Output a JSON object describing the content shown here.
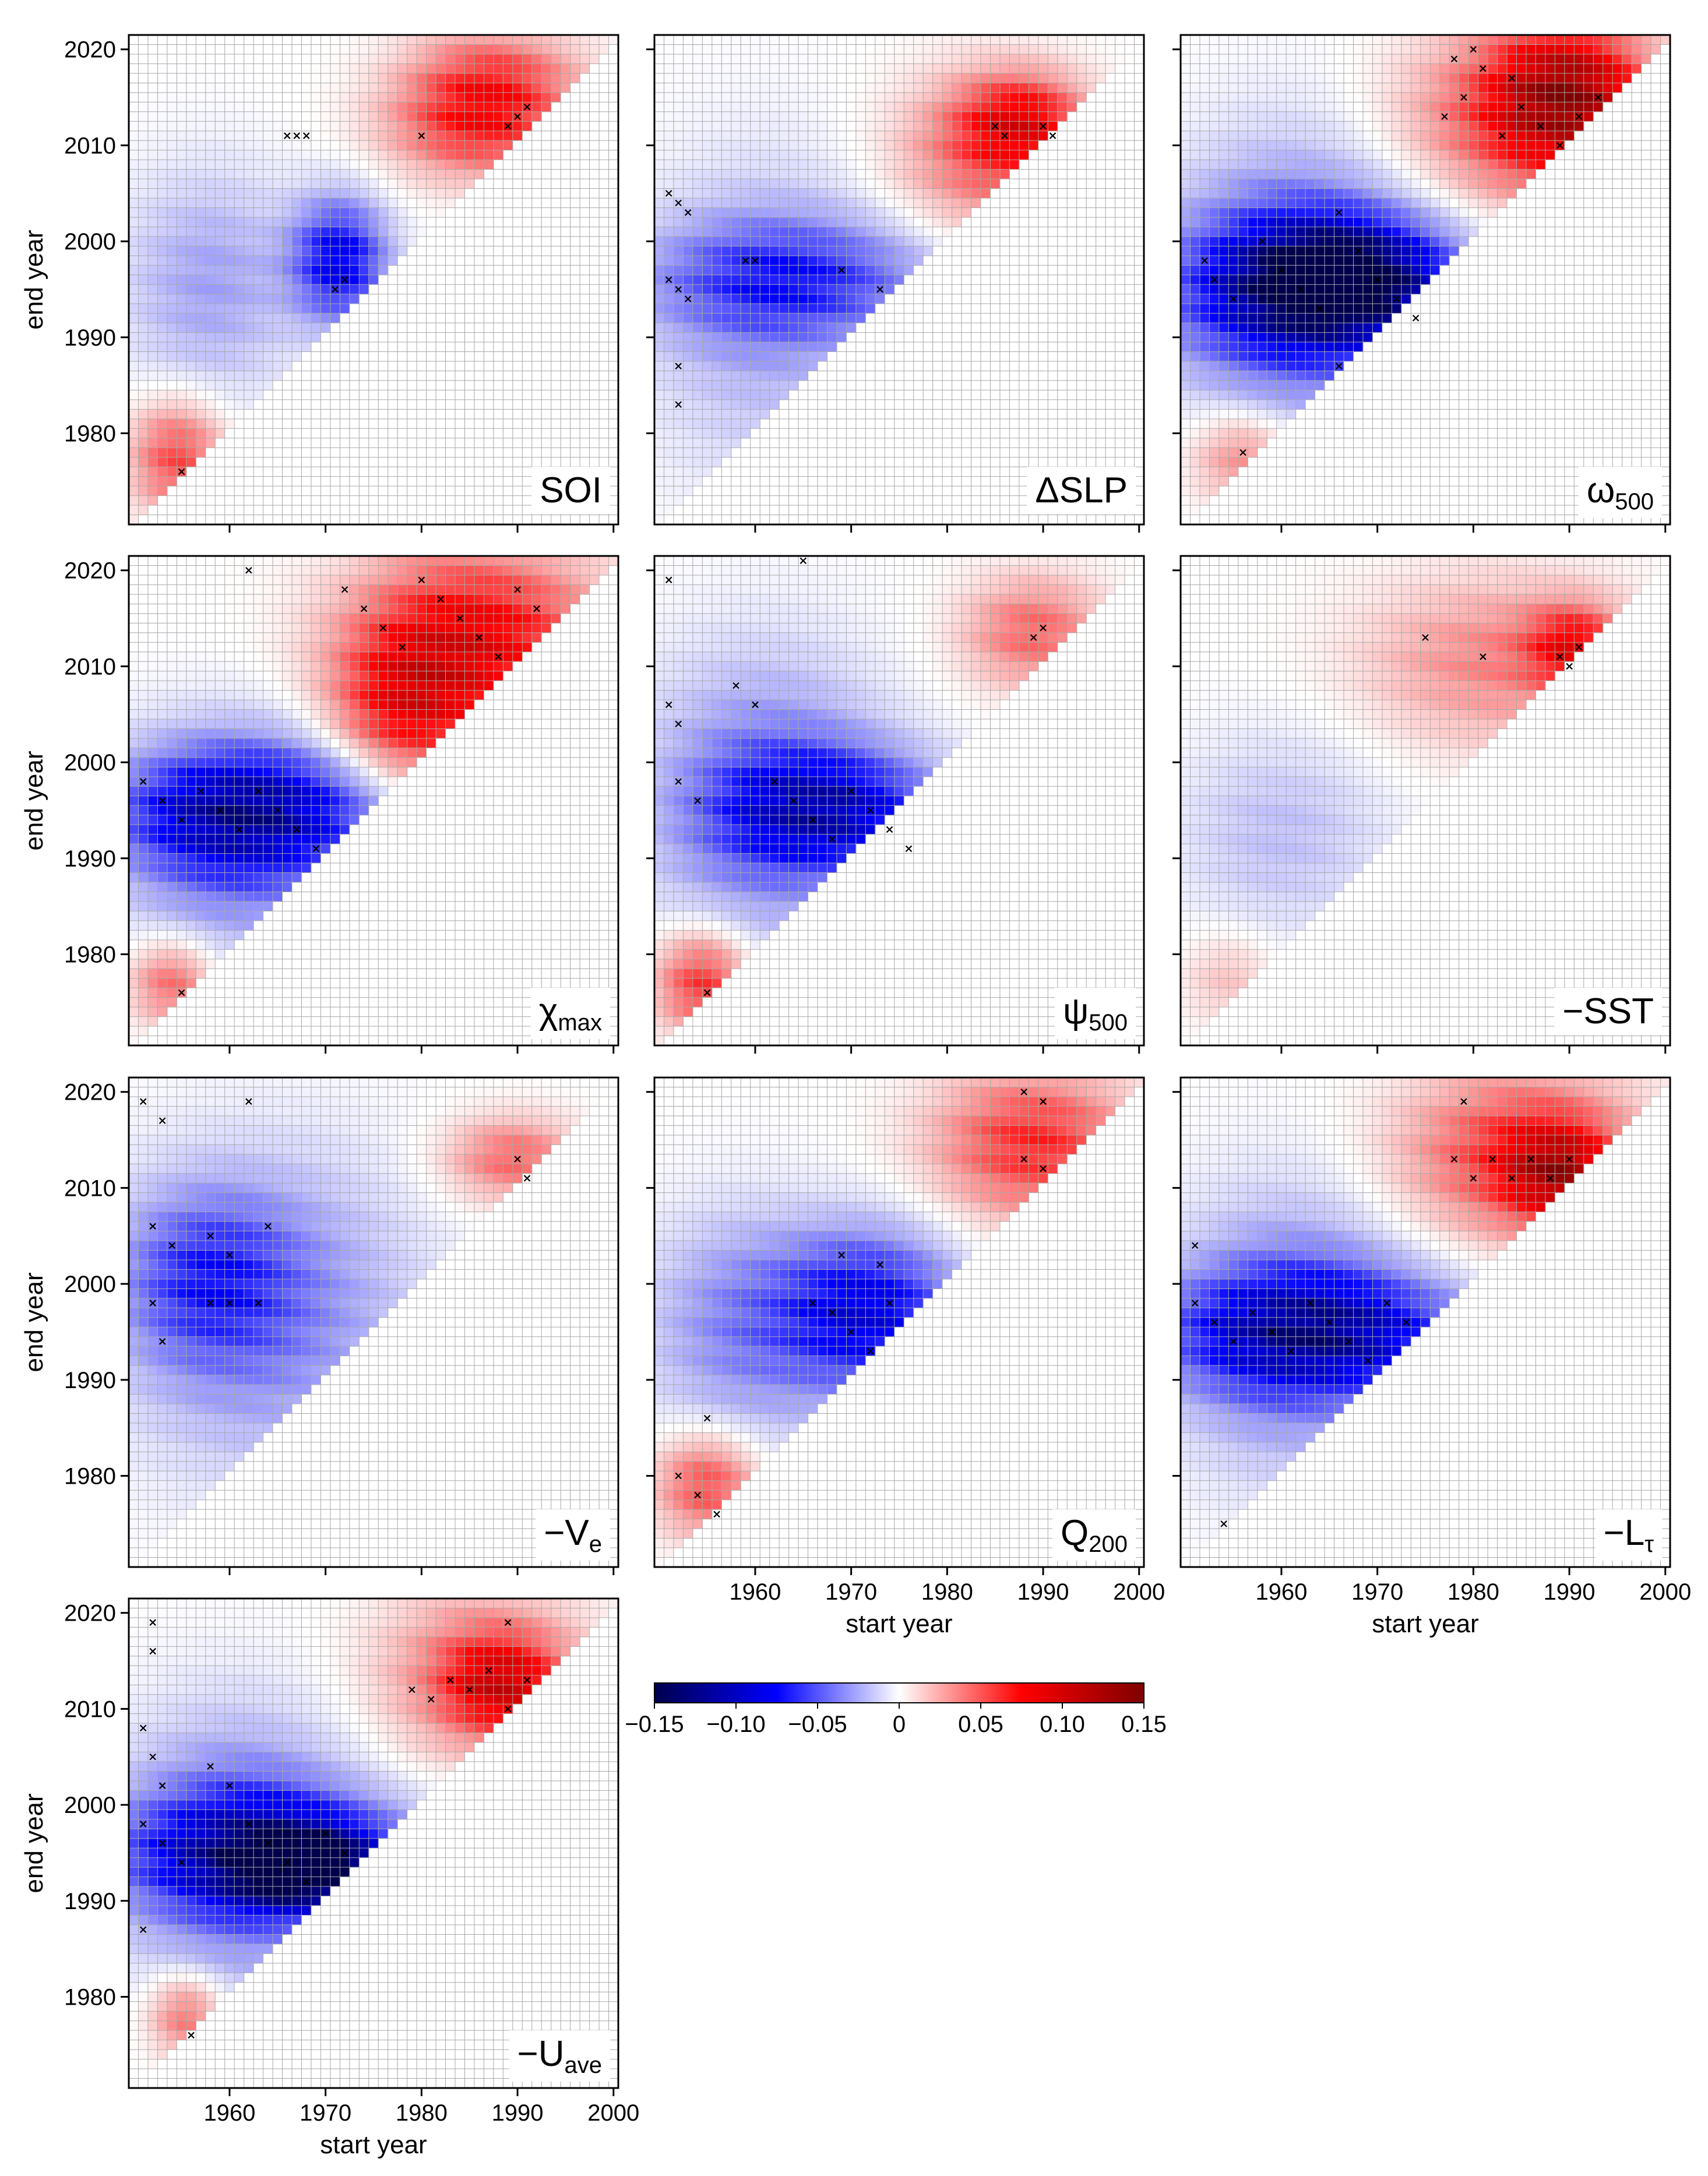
{
  "chart_data": {
    "type": "heatmap",
    "x_range": [
      1950,
      2000
    ],
    "y_range": [
      1971,
      2021
    ],
    "cell_years": 1,
    "x_ticks": [
      1960,
      1970,
      1980,
      1990,
      2000
    ],
    "y_ticks": [
      1980,
      1990,
      2000,
      2010,
      2020
    ],
    "xlabel": "start year",
    "ylabel": "end year",
    "grid": true,
    "colorbar": {
      "min": -0.15,
      "max": 0.15,
      "ticks": [
        -0.15,
        -0.1,
        -0.05,
        0,
        0.05,
        0.1,
        0.15
      ],
      "tick_labels": [
        "−0.15",
        "−0.10",
        "−0.05",
        "0",
        "0.05",
        "0.10",
        "0.15"
      ],
      "colormap": "seismic",
      "stops": [
        "#00004c",
        "#0000ff",
        "#ffffff",
        "#ff0000",
        "#7f0000"
      ]
    },
    "panels": [
      {
        "id": "soi",
        "label_main": "SOI",
        "label_sub": "",
        "features": [
          {
            "x0": 1968,
            "x1": 1975,
            "y0": 1993,
            "y1": 2003,
            "v": -0.09
          },
          {
            "x0": 1978,
            "x1": 1994,
            "y0": 2008,
            "y1": 2016,
            "v": 0.07
          },
          {
            "x0": 1951,
            "x1": 1958,
            "y0": 1973,
            "y1": 1982,
            "v": 0.06
          },
          {
            "x0": 1950,
            "x1": 1966,
            "y0": 1985,
            "y1": 2006,
            "v": -0.03
          },
          {
            "x0": 1980,
            "x1": 1995,
            "y0": 2014,
            "y1": 2021,
            "v": 0.05
          }
        ],
        "sig": [
          [
            1966,
            2011
          ],
          [
            1967,
            2011
          ],
          [
            1968,
            2011
          ],
          [
            1980,
            2011
          ],
          [
            1989,
            2012
          ],
          [
            1990,
            2013
          ],
          [
            1991,
            2014
          ],
          [
            1972,
            1996
          ],
          [
            1971,
            1995
          ],
          [
            1955,
            1976
          ]
        ]
      },
      {
        "id": "dslp",
        "label_main": "ΔSLP",
        "label_sub": "",
        "features": [
          {
            "x0": 1950,
            "x1": 1978,
            "y0": 1991,
            "y1": 2001,
            "v": -0.06
          },
          {
            "x0": 1950,
            "x1": 1972,
            "y0": 1976,
            "y1": 2008,
            "v": -0.025
          },
          {
            "x0": 1976,
            "x1": 1992,
            "y0": 2002,
            "y1": 2016,
            "v": 0.05
          },
          {
            "x0": 1983,
            "x1": 1993,
            "y0": 2009,
            "y1": 2016,
            "v": 0.07
          }
        ],
        "sig": [
          [
            1951,
            2005
          ],
          [
            1952,
            2004
          ],
          [
            1953,
            2003
          ],
          [
            1951,
            1996
          ],
          [
            1952,
            1995
          ],
          [
            1953,
            1994
          ],
          [
            1959,
            1998
          ],
          [
            1960,
            1998
          ],
          [
            1969,
            1997
          ],
          [
            1973,
            1995
          ],
          [
            1985,
            2012
          ],
          [
            1986,
            2011
          ],
          [
            1990,
            2012
          ],
          [
            1991,
            2011
          ],
          [
            1952,
            1987
          ],
          [
            1952,
            1983
          ]
        ]
      },
      {
        "id": "w500",
        "label_main": "ω",
        "label_sub": "500",
        "features": [
          {
            "x0": 1950,
            "x1": 1978,
            "y0": 1988,
            "y1": 2002,
            "v": -0.09
          },
          {
            "x0": 1958,
            "x1": 1974,
            "y0": 1992,
            "y1": 2000,
            "v": -0.12
          },
          {
            "x0": 1950,
            "x1": 1972,
            "y0": 1982,
            "y1": 2010,
            "v": -0.04
          },
          {
            "x0": 1975,
            "x1": 1997,
            "y0": 2005,
            "y1": 2021,
            "v": 0.07
          },
          {
            "x0": 1984,
            "x1": 1996,
            "y0": 2010,
            "y1": 2021,
            "v": 0.1
          },
          {
            "x0": 1952,
            "x1": 1960,
            "y0": 1974,
            "y1": 1981,
            "v": 0.04
          }
        ],
        "sig": [
          [
            1952,
            1998
          ],
          [
            1953,
            1996
          ],
          [
            1955,
            1994
          ],
          [
            1958,
            2000
          ],
          [
            1960,
            1997
          ],
          [
            1962,
            1995
          ],
          [
            1964,
            1993
          ],
          [
            1966,
            2003
          ],
          [
            1968,
            1999
          ],
          [
            1970,
            1996
          ],
          [
            1972,
            1994
          ],
          [
            1974,
            1992
          ],
          [
            1977,
            2013
          ],
          [
            1979,
            2015
          ],
          [
            1981,
            2018
          ],
          [
            1983,
            2011
          ],
          [
            1985,
            2014
          ],
          [
            1987,
            2012
          ],
          [
            1989,
            2010
          ],
          [
            1991,
            2013
          ],
          [
            1993,
            2015
          ],
          [
            1978,
            2019
          ],
          [
            1980,
            2020
          ],
          [
            1984,
            2017
          ],
          [
            1956,
            1978
          ],
          [
            1966,
            1987
          ]
        ]
      },
      {
        "id": "chimax",
        "label_main": "χ",
        "label_sub": "max",
        "features": [
          {
            "x0": 1950,
            "x1": 1974,
            "y0": 1990,
            "y1": 2000,
            "v": -0.09
          },
          {
            "x0": 1950,
            "x1": 1972,
            "y0": 1982,
            "y1": 2002,
            "v": -0.05
          },
          {
            "x0": 1974,
            "x1": 1997,
            "y0": 2005,
            "y1": 2021,
            "v": 0.09
          },
          {
            "x0": 1972,
            "x1": 1985,
            "y0": 1999,
            "y1": 2012,
            "v": 0.07
          },
          {
            "x0": 1951,
            "x1": 1957,
            "y0": 1974,
            "y1": 1980,
            "v": 0.05
          }
        ],
        "sig": [
          [
            1951,
            1998
          ],
          [
            1953,
            1996
          ],
          [
            1955,
            1994
          ],
          [
            1957,
            1997
          ],
          [
            1959,
            1995
          ],
          [
            1961,
            1993
          ],
          [
            1963,
            1997
          ],
          [
            1965,
            1995
          ],
          [
            1967,
            1993
          ],
          [
            1969,
            1991
          ],
          [
            1972,
            2018
          ],
          [
            1974,
            2016
          ],
          [
            1976,
            2014
          ],
          [
            1978,
            2012
          ],
          [
            1980,
            2019
          ],
          [
            1982,
            2017
          ],
          [
            1984,
            2015
          ],
          [
            1986,
            2013
          ],
          [
            1988,
            2011
          ],
          [
            1990,
            2018
          ],
          [
            1992,
            2016
          ],
          [
            1962,
            2020
          ],
          [
            1955,
            1976
          ]
        ]
      },
      {
        "id": "psi500",
        "label_main": "ψ",
        "label_sub": "500",
        "features": [
          {
            "x0": 1958,
            "x1": 1978,
            "y0": 1990,
            "y1": 2000,
            "v": -0.09
          },
          {
            "x0": 1950,
            "x1": 1972,
            "y0": 1982,
            "y1": 2010,
            "v": -0.045
          },
          {
            "x0": 1951,
            "x1": 1958,
            "y0": 1973,
            "y1": 1981,
            "v": 0.07
          },
          {
            "x0": 1983,
            "x1": 1995,
            "y0": 2009,
            "y1": 2018,
            "v": 0.05
          }
        ],
        "sig": [
          [
            1951,
            2006
          ],
          [
            1952,
            2004
          ],
          [
            1958,
            2008
          ],
          [
            1960,
            2006
          ],
          [
            1962,
            1998
          ],
          [
            1964,
            1996
          ],
          [
            1966,
            1994
          ],
          [
            1968,
            1992
          ],
          [
            1970,
            1997
          ],
          [
            1972,
            1995
          ],
          [
            1974,
            1993
          ],
          [
            1976,
            1991
          ],
          [
            1952,
            1998
          ],
          [
            1954,
            1996
          ],
          [
            1989,
            2013
          ],
          [
            1990,
            2014
          ],
          [
            1965,
            2021
          ],
          [
            1951,
            2019
          ],
          [
            1955,
            1976
          ]
        ]
      },
      {
        "id": "msst",
        "label_main": "−SST",
        "label_sub": "",
        "features": [
          {
            "x0": 1970,
            "x1": 1995,
            "y0": 2003,
            "y1": 2018,
            "v": 0.04
          },
          {
            "x0": 1987,
            "x1": 1994,
            "y0": 2009,
            "y1": 2015,
            "v": 0.07
          },
          {
            "x0": 1950,
            "x1": 1970,
            "y0": 1983,
            "y1": 2002,
            "v": -0.02
          },
          {
            "x0": 1951,
            "x1": 1958,
            "y0": 1974,
            "y1": 1981,
            "v": 0.02
          }
        ],
        "sig": [
          [
            1975,
            2013
          ],
          [
            1981,
            2011
          ],
          [
            1989,
            2011
          ],
          [
            1990,
            2010
          ],
          [
            1991,
            2012
          ]
        ]
      },
      {
        "id": "mve",
        "label_main": "−V",
        "label_sub": "e",
        "features": [
          {
            "x0": 1950,
            "x1": 1978,
            "y0": 1982,
            "y1": 2012,
            "v": -0.04
          },
          {
            "x0": 1950,
            "x1": 1965,
            "y0": 1993,
            "y1": 2008,
            "v": -0.05
          },
          {
            "x0": 1984,
            "x1": 1995,
            "y0": 2010,
            "y1": 2016,
            "v": 0.05
          }
        ],
        "sig": [
          [
            1951,
            2019
          ],
          [
            1953,
            2017
          ],
          [
            1952,
            2006
          ],
          [
            1954,
            2004
          ],
          [
            1952,
            1998
          ],
          [
            1958,
            2005
          ],
          [
            1960,
            2003
          ],
          [
            1958,
            1998
          ],
          [
            1960,
            1998
          ],
          [
            1963,
            1998
          ],
          [
            1962,
            2019
          ],
          [
            1964,
            2006
          ],
          [
            1953,
            1994
          ],
          [
            1990,
            2013
          ],
          [
            1991,
            2011
          ]
        ]
      },
      {
        "id": "q200",
        "label_main": "Q",
        "label_sub": "200",
        "features": [
          {
            "x0": 1964,
            "x1": 1980,
            "y0": 1990,
            "y1": 2004,
            "v": -0.09
          },
          {
            "x0": 1950,
            "x1": 1968,
            "y0": 1985,
            "y1": 2006,
            "v": -0.04
          },
          {
            "x0": 1951,
            "x1": 1959,
            "y0": 1975,
            "y1": 1983,
            "v": 0.06
          },
          {
            "x0": 1980,
            "x1": 1998,
            "y0": 2008,
            "y1": 2021,
            "v": 0.07
          }
        ],
        "sig": [
          [
            1966,
            1998
          ],
          [
            1968,
            1997
          ],
          [
            1970,
            1995
          ],
          [
            1972,
            1993
          ],
          [
            1974,
            1998
          ],
          [
            1969,
            2003
          ],
          [
            1973,
            2002
          ],
          [
            1952,
            1980
          ],
          [
            1954,
            1978
          ],
          [
            1956,
            1976
          ],
          [
            1955,
            1986
          ],
          [
            1988,
            2013
          ],
          [
            1990,
            2012
          ],
          [
            1988,
            2020
          ],
          [
            1990,
            2019
          ]
        ]
      },
      {
        "id": "mltau",
        "label_main": "−L",
        "label_sub": "τ",
        "features": [
          {
            "x0": 1950,
            "x1": 1978,
            "y0": 1990,
            "y1": 2000,
            "v": -0.1
          },
          {
            "x0": 1950,
            "x1": 1972,
            "y0": 1982,
            "y1": 2008,
            "v": -0.045
          },
          {
            "x0": 1974,
            "x1": 1996,
            "y0": 2006,
            "y1": 2021,
            "v": 0.07
          },
          {
            "x0": 1985,
            "x1": 1993,
            "y0": 2008,
            "y1": 2015,
            "v": 0.09
          }
        ],
        "sig": [
          [
            1951,
            1998
          ],
          [
            1953,
            1996
          ],
          [
            1955,
            1994
          ],
          [
            1957,
            1997
          ],
          [
            1959,
            1995
          ],
          [
            1961,
            1993
          ],
          [
            1963,
            1998
          ],
          [
            1965,
            1996
          ],
          [
            1967,
            1994
          ],
          [
            1969,
            1992
          ],
          [
            1971,
            1998
          ],
          [
            1973,
            1996
          ],
          [
            1978,
            2013
          ],
          [
            1980,
            2011
          ],
          [
            1982,
            2013
          ],
          [
            1984,
            2011
          ],
          [
            1986,
            2013
          ],
          [
            1988,
            2011
          ],
          [
            1990,
            2013
          ],
          [
            1979,
            2019
          ],
          [
            1954,
            1975
          ],
          [
            1951,
            2004
          ]
        ]
      },
      {
        "id": "muave",
        "label_main": "−U",
        "label_sub": "ave",
        "features": [
          {
            "x0": 1950,
            "x1": 1978,
            "y0": 1990,
            "y1": 2000,
            "v": -0.09
          },
          {
            "x0": 1950,
            "x1": 1972,
            "y0": 1982,
            "y1": 2008,
            "v": -0.05
          },
          {
            "x0": 1962,
            "x1": 1974,
            "y0": 1991,
            "y1": 1996,
            "v": -0.13
          },
          {
            "x0": 1977,
            "x1": 1996,
            "y0": 2006,
            "y1": 2021,
            "v": 0.05
          },
          {
            "x0": 1984,
            "x1": 1993,
            "y0": 2009,
            "y1": 2016,
            "v": 0.07
          },
          {
            "x0": 1953,
            "x1": 1958,
            "y0": 1975,
            "y1": 1981,
            "v": 0.05
          }
        ],
        "sig": [
          [
            1951,
            2008
          ],
          [
            1952,
            2005
          ],
          [
            1953,
            2002
          ],
          [
            1951,
            1998
          ],
          [
            1953,
            1996
          ],
          [
            1955,
            1994
          ],
          [
            1958,
            2004
          ],
          [
            1960,
            2002
          ],
          [
            1962,
            1998
          ],
          [
            1964,
            1996
          ],
          [
            1966,
            1994
          ],
          [
            1968,
            1992
          ],
          [
            1970,
            1997
          ],
          [
            1972,
            1995
          ],
          [
            1979,
            2012
          ],
          [
            1981,
            2011
          ],
          [
            1983,
            2013
          ],
          [
            1985,
            2012
          ],
          [
            1987,
            2014
          ],
          [
            1989,
            2010
          ],
          [
            1991,
            2013
          ],
          [
            1989,
            2019
          ],
          [
            1956,
            1976
          ],
          [
            1951,
            1987
          ],
          [
            1952,
            2019
          ],
          [
            1952,
            2016
          ]
        ]
      }
    ]
  }
}
